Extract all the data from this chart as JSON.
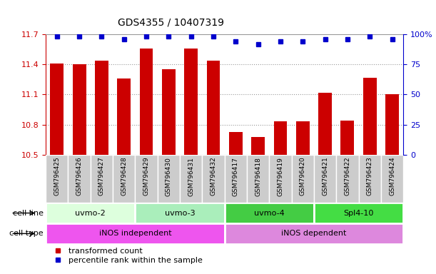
{
  "title": "GDS4355 / 10407319",
  "samples": [
    "GSM796425",
    "GSM796426",
    "GSM796427",
    "GSM796428",
    "GSM796429",
    "GSM796430",
    "GSM796431",
    "GSM796432",
    "GSM796417",
    "GSM796418",
    "GSM796419",
    "GSM796420",
    "GSM796421",
    "GSM796422",
    "GSM796423",
    "GSM796424"
  ],
  "bar_values": [
    11.41,
    11.4,
    11.44,
    11.26,
    11.56,
    11.35,
    11.56,
    11.44,
    10.73,
    10.68,
    10.83,
    10.83,
    11.12,
    10.84,
    11.27,
    11.1
  ],
  "percentile_values": [
    98,
    98,
    98,
    96,
    98,
    98,
    98,
    98,
    94,
    92,
    94,
    94,
    96,
    96,
    98,
    96
  ],
  "ylim_left": [
    10.5,
    11.7
  ],
  "ylim_right": [
    0,
    100
  ],
  "yticks_left": [
    10.5,
    10.8,
    11.1,
    11.4,
    11.7
  ],
  "yticks_right": [
    0,
    25,
    50,
    75,
    100
  ],
  "ytick_labels_left": [
    "10.5",
    "10.8",
    "11.1",
    "11.4",
    "11.7"
  ],
  "ytick_labels_right": [
    "0",
    "25",
    "50",
    "75",
    "100%"
  ],
  "bar_color": "#cc0000",
  "dot_color": "#0000cc",
  "cell_line_groups": [
    {
      "label": "uvmo-2",
      "start": 0,
      "end": 3,
      "color": "#ddffdd"
    },
    {
      "label": "uvmo-3",
      "start": 4,
      "end": 7,
      "color": "#aaeebb"
    },
    {
      "label": "uvmo-4",
      "start": 8,
      "end": 11,
      "color": "#44cc44"
    },
    {
      "label": "Spl4-10",
      "start": 12,
      "end": 15,
      "color": "#44dd44"
    }
  ],
  "cell_type_groups": [
    {
      "label": "iNOS independent",
      "start": 0,
      "end": 7,
      "color": "#ee55ee"
    },
    {
      "label": "iNOS dependent",
      "start": 8,
      "end": 15,
      "color": "#dd88dd"
    }
  ],
  "legend_items": [
    {
      "label": "transformed count",
      "color": "#cc0000"
    },
    {
      "label": "percentile rank within the sample",
      "color": "#0000cc"
    }
  ],
  "grid_color": "#999999",
  "bg_color": "#ffffff",
  "label_row1": "cell line",
  "label_row2": "cell type",
  "sample_bg_color": "#cccccc",
  "sample_border_color": "#ffffff"
}
